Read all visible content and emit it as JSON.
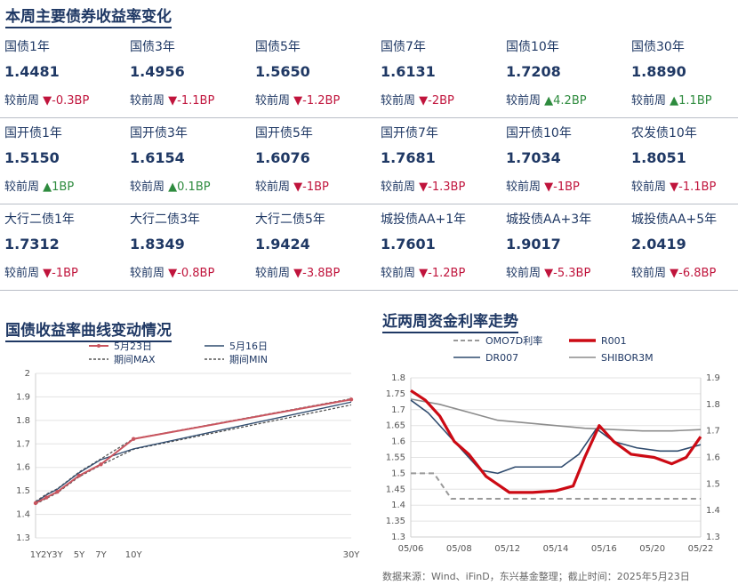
{
  "header": {
    "title": "本周主要债券收益率变化"
  },
  "change_label": "较前周",
  "colors": {
    "up": "#2e8b3e",
    "down": "#c0143c"
  },
  "rows": [
    [
      {
        "name": "国债1年",
        "value": "1.4481",
        "dir": "down",
        "delta": "-0.3BP"
      },
      {
        "name": "国债3年",
        "value": "1.4956",
        "dir": "down",
        "delta": "-1.1BP"
      },
      {
        "name": "国债5年",
        "value": "1.5650",
        "dir": "down",
        "delta": "-1.2BP"
      },
      {
        "name": "国债7年",
        "value": "1.6131",
        "dir": "down",
        "delta": "-2BP"
      },
      {
        "name": "国债10年",
        "value": "1.7208",
        "dir": "up",
        "delta": "4.2BP"
      },
      {
        "name": "国债30年",
        "value": "1.8890",
        "dir": "up",
        "delta": "1.1BP"
      }
    ],
    [
      {
        "name": "国开债1年",
        "value": "1.5150",
        "dir": "up",
        "delta": "1BP"
      },
      {
        "name": "国开债3年",
        "value": "1.6154",
        "dir": "up",
        "delta": "0.1BP"
      },
      {
        "name": "国开债5年",
        "value": "1.6076",
        "dir": "down",
        "delta": "-1BP"
      },
      {
        "name": "国开债7年",
        "value": "1.7681",
        "dir": "down",
        "delta": "-1.3BP"
      },
      {
        "name": "国开债10年",
        "value": "1.7034",
        "dir": "down",
        "delta": "-1BP"
      },
      {
        "name": "农发债10年",
        "value": "1.8051",
        "dir": "down",
        "delta": "-1.1BP"
      }
    ],
    [
      {
        "name": "大行二债1年",
        "value": "1.7312",
        "dir": "down",
        "delta": "-1BP"
      },
      {
        "name": "大行二债3年",
        "value": "1.8349",
        "dir": "down",
        "delta": "-0.8BP"
      },
      {
        "name": "大行二债5年",
        "value": "1.9424",
        "dir": "down",
        "delta": "-3.8BP"
      },
      {
        "name": "城投债AA+1年",
        "value": "1.7601",
        "dir": "down",
        "delta": "-1.2BP"
      },
      {
        "name": "城投债AA+3年",
        "value": "1.9017",
        "dir": "down",
        "delta": "-5.3BP"
      },
      {
        "name": "城投债AA+5年",
        "value": "2.0419",
        "dir": "down",
        "delta": "-6.8BP"
      }
    ]
  ],
  "left_chart": {
    "title": "国债收益率曲线变动情况"
  },
  "right_chart": {
    "title": "近两周资金利率走势"
  },
  "source": "数据来源：Wind、iFinD，东兴基金整理；截止时间：2025年5月23日",
  "chart_data": [
    {
      "type": "line",
      "title": "国债收益率曲线变动情况",
      "x": [
        1,
        2,
        3,
        5,
        7,
        10,
        30
      ],
      "x_tick_labels": [
        "1Y",
        "2Y",
        "3Y",
        "5Y",
        "7Y",
        "10Y",
        "30Y"
      ],
      "ylim": [
        1.3,
        2.0
      ],
      "yticks": [
        1.3,
        1.4,
        1.5,
        1.6,
        1.7,
        1.8,
        1.9,
        2.0
      ],
      "grid": true,
      "legend_position": "top",
      "series": [
        {
          "name": "5月23日",
          "color": "#c9555f",
          "style": "solid-markers",
          "values": [
            1.448,
            1.472,
            1.496,
            1.565,
            1.613,
            1.721,
            1.889
          ]
        },
        {
          "name": "5月16日",
          "color": "#2f4b6e",
          "style": "solid",
          "values": [
            1.451,
            1.483,
            1.507,
            1.577,
            1.633,
            1.679,
            1.878
          ]
        },
        {
          "name": "期间MAX",
          "color": "#555555",
          "style": "dashed",
          "values": [
            1.455,
            1.486,
            1.509,
            1.58,
            1.636,
            1.722,
            1.892
          ]
        },
        {
          "name": "期间MIN",
          "color": "#555555",
          "style": "dashed",
          "values": [
            1.444,
            1.468,
            1.492,
            1.56,
            1.61,
            1.677,
            1.866
          ]
        }
      ]
    },
    {
      "type": "line",
      "title": "近两周资金利率走势",
      "x_tick_labels": [
        "05/06",
        "05/08",
        "05/12",
        "05/14",
        "05/16",
        "05/20",
        "05/22"
      ],
      "ylim": [
        1.3,
        1.8
      ],
      "yticks": [
        1.3,
        1.35,
        1.4,
        1.45,
        1.5,
        1.55,
        1.6,
        1.65,
        1.7,
        1.75,
        1.8
      ],
      "y2lim": [
        1.3,
        1.9
      ],
      "y2ticks": [
        1.3,
        1.4,
        1.5,
        1.6,
        1.7,
        1.8,
        1.9
      ],
      "grid": true,
      "legend_position": "top",
      "series": [
        {
          "name": "OMO7D利率",
          "axis": "left",
          "color": "#999999",
          "style": "dashed",
          "points": [
            [
              0,
              1.5
            ],
            [
              0.08,
              1.5
            ],
            [
              0.14,
              1.42
            ],
            [
              1,
              1.42
            ]
          ]
        },
        {
          "name": "R001",
          "axis": "left",
          "color": "#cc0a14",
          "style": "bold",
          "points": [
            [
              0,
              1.76
            ],
            [
              0.05,
              1.73
            ],
            [
              0.1,
              1.68
            ],
            [
              0.15,
              1.6
            ],
            [
              0.2,
              1.56
            ],
            [
              0.26,
              1.49
            ],
            [
              0.34,
              1.44
            ],
            [
              0.42,
              1.44
            ],
            [
              0.5,
              1.445
            ],
            [
              0.56,
              1.46
            ],
            [
              0.6,
              1.55
            ],
            [
              0.65,
              1.65
            ],
            [
              0.7,
              1.6
            ],
            [
              0.76,
              1.56
            ],
            [
              0.84,
              1.55
            ],
            [
              0.9,
              1.53
            ],
            [
              0.95,
              1.55
            ],
            [
              1,
              1.615
            ]
          ]
        },
        {
          "name": "DR007",
          "axis": "left",
          "color": "#2f4b6e",
          "style": "solid",
          "points": [
            [
              0,
              1.73
            ],
            [
              0.06,
              1.69
            ],
            [
              0.12,
              1.63
            ],
            [
              0.18,
              1.57
            ],
            [
              0.24,
              1.51
            ],
            [
              0.3,
              1.5
            ],
            [
              0.36,
              1.52
            ],
            [
              0.44,
              1.52
            ],
            [
              0.52,
              1.52
            ],
            [
              0.58,
              1.56
            ],
            [
              0.64,
              1.64
            ],
            [
              0.7,
              1.6
            ],
            [
              0.78,
              1.58
            ],
            [
              0.86,
              1.57
            ],
            [
              0.92,
              1.57
            ],
            [
              1,
              1.59
            ]
          ]
        },
        {
          "name": "SHIBOR3M",
          "axis": "right",
          "color": "#8c8c8c",
          "style": "solid",
          "points": [
            [
              0,
              1.82
            ],
            [
              0.1,
              1.8
            ],
            [
              0.2,
              1.77
            ],
            [
              0.3,
              1.74
            ],
            [
              0.4,
              1.73
            ],
            [
              0.5,
              1.72
            ],
            [
              0.6,
              1.71
            ],
            [
              0.7,
              1.705
            ],
            [
              0.8,
              1.7
            ],
            [
              0.9,
              1.7
            ],
            [
              1,
              1.705
            ]
          ]
        }
      ]
    }
  ]
}
